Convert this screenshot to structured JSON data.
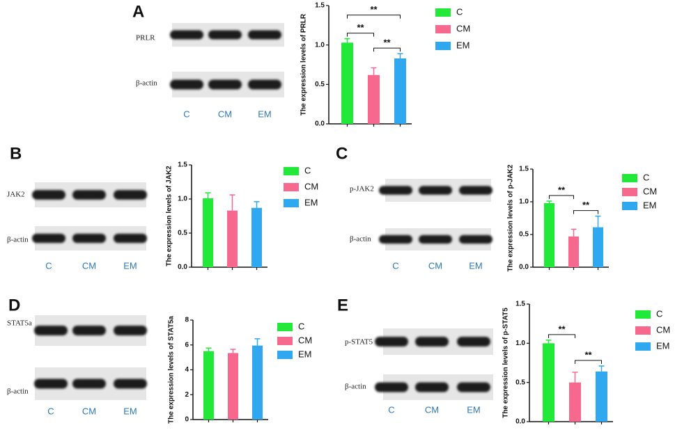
{
  "chart_data": [
    {
      "type": "bar",
      "panel": "A",
      "blot_labels": [
        "PRLR",
        "β-actin"
      ],
      "lane_labels": [
        "C",
        "CM",
        "EM"
      ],
      "ylabel": "The expression levels of PRLR",
      "categories": [
        "C",
        "CM",
        "EM"
      ],
      "values": [
        1.03,
        0.62,
        0.83
      ],
      "errors": [
        0.05,
        0.09,
        0.06
      ],
      "colors": [
        "#22e83a",
        "#f7688f",
        "#2fa8f0"
      ],
      "ylim": [
        0,
        1.5
      ],
      "yticks": [
        {
          "value": 0,
          "label": "0.0"
        },
        {
          "value": 0.5,
          "label": "0.5"
        },
        {
          "value": 1,
          "label": "1.0"
        },
        {
          "value": 1.5,
          "label": "1.5"
        }
      ],
      "comparisons": [
        {
          "label": "**",
          "pair": [
            0,
            1
          ]
        },
        {
          "label": "**",
          "pair": [
            0,
            2
          ]
        },
        {
          "label": "**",
          "pair": [
            1,
            2
          ]
        }
      ]
    },
    {
      "type": "bar",
      "panel": "B",
      "blot_labels": [
        "JAK2",
        "β-actin"
      ],
      "lane_labels": [
        "C",
        "CM",
        "EM"
      ],
      "ylabel": "The expression levels of JAK2",
      "categories": [
        "C",
        "CM",
        "EM"
      ],
      "values": [
        1.01,
        0.83,
        0.87
      ],
      "errors": [
        0.08,
        0.23,
        0.09
      ],
      "colors": [
        "#22e83a",
        "#f7688f",
        "#2fa8f0"
      ],
      "ylim": [
        0,
        1.5
      ],
      "yticks": [
        {
          "value": 0,
          "label": "0.0"
        },
        {
          "value": 0.5,
          "label": "0.5"
        },
        {
          "value": 1,
          "label": "1.0"
        },
        {
          "value": 1.5,
          "label": "1.5"
        }
      ],
      "comparisons": []
    },
    {
      "type": "bar",
      "panel": "C",
      "blot_labels": [
        "p-JAK2",
        "β-actin"
      ],
      "lane_labels": [
        "C",
        "CM",
        "EM"
      ],
      "ylabel": "The expression levels of p-JAK2",
      "categories": [
        "C",
        "CM",
        "EM"
      ],
      "values": [
        0.98,
        0.47,
        0.61
      ],
      "errors": [
        0.03,
        0.11,
        0.17
      ],
      "colors": [
        "#22e83a",
        "#f7688f",
        "#2fa8f0"
      ],
      "ylim": [
        0,
        1.5
      ],
      "yticks": [
        {
          "value": 0,
          "label": "0.0"
        },
        {
          "value": 0.5,
          "label": "0.5"
        },
        {
          "value": 1,
          "label": "1.0"
        },
        {
          "value": 1.5,
          "label": "1.5"
        }
      ],
      "comparisons": [
        {
          "label": "**",
          "pair": [
            0,
            1
          ]
        },
        {
          "label": "**",
          "pair": [
            1,
            2
          ]
        }
      ]
    },
    {
      "type": "bar",
      "panel": "D",
      "blot_labels": [
        "STAT5a",
        "β-actin"
      ],
      "lane_labels": [
        "C",
        "CM",
        "EM"
      ],
      "ylabel": "The expression levels of STAT5a",
      "categories": [
        "C",
        "CM",
        "EM"
      ],
      "values": [
        5.5,
        5.35,
        5.95
      ],
      "errors": [
        0.25,
        0.3,
        0.55
      ],
      "colors": [
        "#22e83a",
        "#f7688f",
        "#2fa8f0"
      ],
      "ylim": [
        0,
        8
      ],
      "yticks": [
        0,
        2,
        4,
        6,
        8
      ],
      "comparisons": []
    },
    {
      "type": "bar",
      "panel": "E",
      "blot_labels": [
        "p-STAT5",
        "β-actin"
      ],
      "lane_labels": [
        "C",
        "CM",
        "EM"
      ],
      "ylabel": "The expression levels of p-STAT5",
      "categories": [
        "C",
        "CM",
        "EM"
      ],
      "values": [
        1.0,
        0.5,
        0.64
      ],
      "errors": [
        0.04,
        0.13,
        0.07
      ],
      "colors": [
        "#22e83a",
        "#f7688f",
        "#2fa8f0"
      ],
      "ylim": [
        0,
        1.5
      ],
      "yticks": [
        {
          "value": 0,
          "label": "0.0"
        },
        {
          "value": 0.5,
          "label": "0.5"
        },
        {
          "value": 1,
          "label": "1.0"
        },
        {
          "value": 1.5,
          "label": "1.5"
        }
      ],
      "comparisons": [
        {
          "label": "**",
          "pair": [
            0,
            1
          ]
        },
        {
          "label": "**",
          "pair": [
            1,
            2
          ]
        }
      ]
    }
  ]
}
